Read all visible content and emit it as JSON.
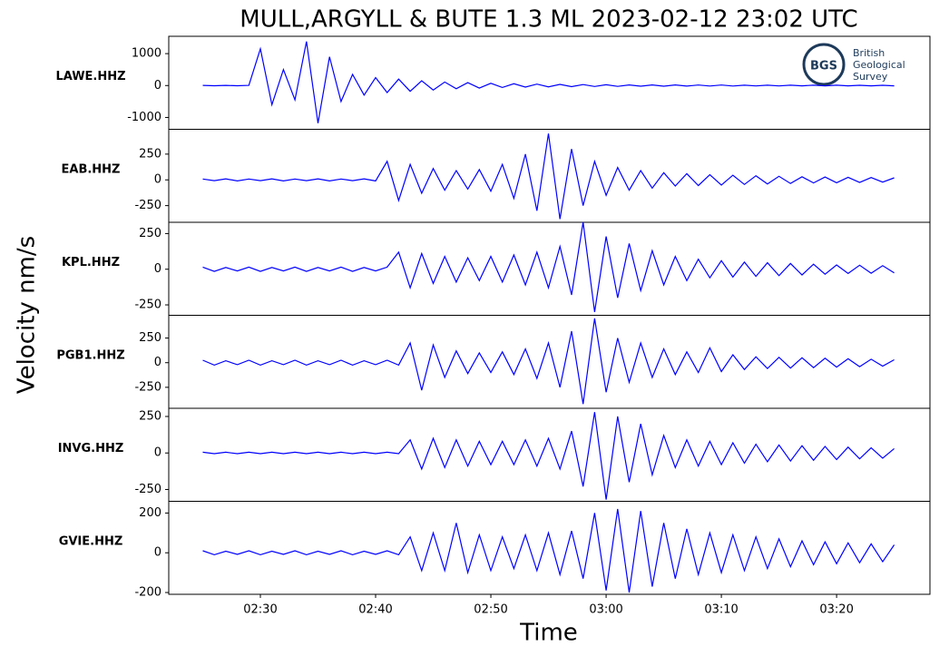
{
  "title": "MULL,ARGYLL & BUTE 1.3 ML   2023-02-12 23:02 UTC",
  "ylabel": "Velocity nm/s",
  "xlabel": "Time",
  "logo": {
    "mark": "BGS",
    "lines": [
      "British",
      "Geological",
      "Survey"
    ]
  },
  "chart_data": [
    {
      "type": "line",
      "name": "LAWE.HHZ",
      "color": "#0000ff",
      "ylim": [
        -1371,
        1543
      ],
      "yticks": [
        -1000,
        0,
        1000
      ],
      "xlim": [
        22.05,
        88.1
      ],
      "x": [
        25,
        26,
        27,
        28,
        29,
        30,
        31,
        32,
        33,
        34,
        35,
        36,
        37,
        38,
        39,
        40,
        41,
        42,
        43,
        44,
        45,
        46,
        47,
        48,
        49,
        50,
        51,
        52,
        53,
        54,
        55,
        56,
        57,
        58,
        59,
        60,
        61,
        62,
        63,
        64,
        65,
        66,
        67,
        68,
        69,
        70,
        71,
        72,
        73,
        74,
        75,
        76,
        77,
        78,
        79,
        80,
        81,
        82,
        83,
        84,
        85
      ],
      "values": [
        5,
        -5,
        5,
        -5,
        5,
        1150,
        -600,
        500,
        -450,
        1380,
        -1180,
        900,
        -500,
        350,
        -300,
        250,
        -220,
        200,
        -180,
        150,
        -140,
        110,
        -100,
        90,
        -80,
        70,
        -60,
        55,
        -50,
        45,
        -40,
        35,
        -35,
        30,
        -30,
        25,
        -25,
        20,
        -20,
        20,
        -20,
        18,
        -18,
        15,
        -15,
        15,
        -15,
        12,
        -12,
        12,
        -12,
        10,
        -10,
        10,
        -10,
        10,
        -10,
        8,
        -8,
        8,
        -8
      ]
    },
    {
      "type": "line",
      "name": "EAB.HHZ",
      "color": "#0000ff",
      "ylim": [
        -412,
        491
      ],
      "yticks": [
        -250,
        0,
        250
      ],
      "xlim": [
        22.05,
        88.1
      ],
      "x": [
        25,
        26,
        27,
        28,
        29,
        30,
        31,
        32,
        33,
        34,
        35,
        36,
        37,
        38,
        39,
        40,
        41,
        42,
        43,
        44,
        45,
        46,
        47,
        48,
        49,
        50,
        51,
        52,
        53,
        54,
        55,
        56,
        57,
        58,
        59,
        60,
        61,
        62,
        63,
        64,
        65,
        66,
        67,
        68,
        69,
        70,
        71,
        72,
        73,
        74,
        75,
        76,
        77,
        78,
        79,
        80,
        81,
        82,
        83,
        84,
        85
      ],
      "values": [
        8,
        -8,
        10,
        -10,
        8,
        -8,
        10,
        -10,
        8,
        -8,
        10,
        -10,
        8,
        -8,
        10,
        -10,
        180,
        -200,
        150,
        -130,
        110,
        -100,
        90,
        -90,
        100,
        -110,
        150,
        -180,
        250,
        -300,
        450,
        -380,
        300,
        -250,
        180,
        -150,
        120,
        -100,
        90,
        -80,
        70,
        -60,
        60,
        -55,
        50,
        -50,
        45,
        -45,
        40,
        -40,
        35,
        -35,
        30,
        -30,
        28,
        -28,
        25,
        -25,
        22,
        -22,
        20
      ]
    },
    {
      "type": "line",
      "name": "KPL.HHZ",
      "color": "#0000ff",
      "ylim": [
        -323,
        329
      ],
      "yticks": [
        -250,
        0,
        250
      ],
      "xlim": [
        22.05,
        88.1
      ],
      "x": [
        25,
        26,
        27,
        28,
        29,
        30,
        31,
        32,
        33,
        34,
        35,
        36,
        37,
        38,
        39,
        40,
        41,
        42,
        43,
        44,
        45,
        46,
        47,
        48,
        49,
        50,
        51,
        52,
        53,
        54,
        55,
        56,
        57,
        58,
        59,
        60,
        61,
        62,
        63,
        64,
        65,
        66,
        67,
        68,
        69,
        70,
        71,
        72,
        73,
        74,
        75,
        76,
        77,
        78,
        79,
        80,
        81,
        82,
        83,
        84,
        85
      ],
      "values": [
        15,
        -15,
        12,
        -12,
        15,
        -15,
        12,
        -12,
        15,
        -15,
        12,
        -12,
        15,
        -15,
        12,
        -12,
        15,
        120,
        -130,
        110,
        -100,
        90,
        -90,
        80,
        -80,
        90,
        -90,
        100,
        -110,
        120,
        -130,
        160,
        -180,
        330,
        -300,
        230,
        -200,
        180,
        -150,
        130,
        -110,
        90,
        -80,
        70,
        -60,
        60,
        -55,
        50,
        -50,
        45,
        -45,
        40,
        -40,
        35,
        -35,
        30,
        -30,
        28,
        -28,
        25,
        -25
      ]
    },
    {
      "type": "line",
      "name": "PGB1.HHZ",
      "color": "#0000ff",
      "ylim": [
        -463,
        481
      ],
      "yticks": [
        -250,
        0,
        250
      ],
      "xlim": [
        22.05,
        88.1
      ],
      "x": [
        25,
        26,
        27,
        28,
        29,
        30,
        31,
        32,
        33,
        34,
        35,
        36,
        37,
        38,
        39,
        40,
        41,
        42,
        43,
        44,
        45,
        46,
        47,
        48,
        49,
        50,
        51,
        52,
        53,
        54,
        55,
        56,
        57,
        58,
        59,
        60,
        61,
        62,
        63,
        64,
        65,
        66,
        67,
        68,
        69,
        70,
        71,
        72,
        73,
        74,
        75,
        76,
        77,
        78,
        79,
        80,
        81,
        82,
        83,
        84,
        85
      ],
      "values": [
        25,
        -25,
        20,
        -20,
        25,
        -25,
        20,
        -20,
        25,
        -25,
        20,
        -20,
        25,
        -25,
        20,
        -20,
        25,
        -25,
        200,
        -280,
        180,
        -150,
        120,
        -110,
        100,
        -100,
        110,
        -120,
        140,
        -160,
        200,
        -250,
        320,
        -420,
        450,
        -300,
        250,
        -200,
        200,
        -150,
        140,
        -120,
        110,
        -100,
        150,
        -90,
        80,
        -70,
        60,
        -60,
        55,
        -55,
        50,
        -50,
        45,
        -45,
        40,
        -40,
        35,
        -35,
        30
      ]
    },
    {
      "type": "line",
      "name": "INVG.HHZ",
      "color": "#0000ff",
      "ylim": [
        -331,
        306
      ],
      "yticks": [
        -250,
        0,
        250
      ],
      "xlim": [
        22.05,
        88.1
      ],
      "x": [
        25,
        26,
        27,
        28,
        29,
        30,
        31,
        32,
        33,
        34,
        35,
        36,
        37,
        38,
        39,
        40,
        41,
        42,
        43,
        44,
        45,
        46,
        47,
        48,
        49,
        50,
        51,
        52,
        53,
        54,
        55,
        56,
        57,
        58,
        59,
        60,
        61,
        62,
        63,
        64,
        65,
        66,
        67,
        68,
        69,
        70,
        71,
        72,
        73,
        74,
        75,
        76,
        77,
        78,
        79,
        80,
        81,
        82,
        83,
        84,
        85
      ],
      "values": [
        5,
        -5,
        5,
        -5,
        5,
        -5,
        5,
        -5,
        5,
        -5,
        5,
        -5,
        5,
        -5,
        5,
        -5,
        5,
        -5,
        90,
        -110,
        100,
        -100,
        90,
        -90,
        80,
        -80,
        80,
        -80,
        90,
        -90,
        100,
        -110,
        150,
        -230,
        280,
        -320,
        250,
        -200,
        200,
        -150,
        120,
        -100,
        90,
        -90,
        80,
        -80,
        70,
        -70,
        60,
        -60,
        55,
        -55,
        50,
        -50,
        45,
        -45,
        40,
        -40,
        35,
        -35,
        30
      ]
    },
    {
      "type": "line",
      "name": "GVIE.HHZ",
      "color": "#0000ff",
      "ylim": [
        -209,
        259
      ],
      "yticks": [
        -200,
        0,
        200
      ],
      "xlim": [
        22.05,
        88.1
      ],
      "xticks": [
        {
          "value": 30,
          "label": "02:30"
        },
        {
          "value": 40,
          "label": "02:40"
        },
        {
          "value": 50,
          "label": "02:50"
        },
        {
          "value": 60,
          "label": "03:00"
        },
        {
          "value": 70,
          "label": "03:10"
        },
        {
          "value": 80,
          "label": "03:20"
        }
      ],
      "x": [
        25,
        26,
        27,
        28,
        29,
        30,
        31,
        32,
        33,
        34,
        35,
        36,
        37,
        38,
        39,
        40,
        41,
        42,
        43,
        44,
        45,
        46,
        47,
        48,
        49,
        50,
        51,
        52,
        53,
        54,
        55,
        56,
        57,
        58,
        59,
        60,
        61,
        62,
        63,
        64,
        65,
        66,
        67,
        68,
        69,
        70,
        71,
        72,
        73,
        74,
        75,
        76,
        77,
        78,
        79,
        80,
        81,
        82,
        83,
        84,
        85
      ],
      "values": [
        10,
        -10,
        8,
        -8,
        10,
        -10,
        8,
        -8,
        10,
        -10,
        8,
        -8,
        10,
        -10,
        8,
        -8,
        10,
        -10,
        80,
        -90,
        100,
        -90,
        150,
        -100,
        90,
        -90,
        80,
        -80,
        90,
        -90,
        100,
        -110,
        110,
        -130,
        200,
        -190,
        220,
        -200,
        210,
        -170,
        150,
        -130,
        120,
        -110,
        100,
        -100,
        90,
        -90,
        80,
        -80,
        70,
        -70,
        60,
        -60,
        55,
        -55,
        50,
        -50,
        45,
        -45,
        40
      ]
    }
  ]
}
